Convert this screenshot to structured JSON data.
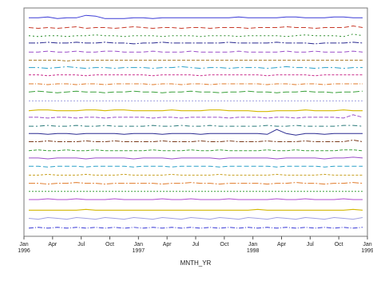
{
  "chart_data": {
    "type": "line",
    "xlabel": "MNTH_YR",
    "ylabel": "",
    "x_ticks": [
      {
        "label": "Jan",
        "sub": "1996",
        "month_index": 0
      },
      {
        "label": "Apr",
        "sub": "",
        "month_index": 3
      },
      {
        "label": "Jul",
        "sub": "",
        "month_index": 6
      },
      {
        "label": "Oct",
        "sub": "",
        "month_index": 9
      },
      {
        "label": "Jan",
        "sub": "1997",
        "month_index": 12
      },
      {
        "label": "Apr",
        "sub": "",
        "month_index": 15
      },
      {
        "label": "Jul",
        "sub": "",
        "month_index": 18
      },
      {
        "label": "Oct",
        "sub": "",
        "month_index": 21
      },
      {
        "label": "Jan",
        "sub": "1998",
        "month_index": 24
      },
      {
        "label": "Apr",
        "sub": "",
        "month_index": 27
      },
      {
        "label": "Jul",
        "sub": "",
        "month_index": 30
      },
      {
        "label": "Oct",
        "sub": "",
        "month_index": 33
      },
      {
        "label": "Jan",
        "sub": "1999",
        "month_index": 36
      }
    ],
    "x_months": [
      "1996-01",
      "1996-02",
      "1996-03",
      "1996-04",
      "1996-05",
      "1996-06",
      "1996-07",
      "1996-08",
      "1996-09",
      "1996-10",
      "1996-11",
      "1996-12",
      "1997-01",
      "1997-02",
      "1997-03",
      "1997-04",
      "1997-05",
      "1997-06",
      "1997-07",
      "1997-08",
      "1997-09",
      "1997-10",
      "1997-11",
      "1997-12",
      "1998-01",
      "1998-02",
      "1998-03",
      "1998-04",
      "1998-05",
      "1998-06",
      "1998-07",
      "1998-08",
      "1998-09",
      "1998-10",
      "1998-11",
      "1998-12"
    ],
    "xlim": [
      0,
      36
    ],
    "ylim": [
      0,
      28
    ],
    "grid": false,
    "legend": "none",
    "series": [
      {
        "color": "#3b3bd6",
        "dash": "solid",
        "values": [
          26.8,
          26.8,
          26.9,
          26.7,
          26.8,
          26.8,
          27.1,
          27.0,
          26.7,
          26.7,
          26.7,
          26.8,
          26.8,
          26.7,
          26.8,
          26.8,
          26.8,
          26.8,
          26.8,
          26.8,
          26.8,
          26.8,
          26.9,
          26.8,
          26.8,
          26.8,
          26.8,
          26.9,
          26.9,
          26.8,
          26.8,
          26.8,
          26.9,
          26.9,
          26.8,
          26.8
        ]
      },
      {
        "color": "#c83a2a",
        "dash": "6,3",
        "values": [
          25.6,
          25.5,
          25.6,
          25.5,
          25.6,
          25.7,
          25.5,
          25.6,
          25.6,
          25.5,
          25.6,
          25.7,
          25.6,
          25.5,
          25.6,
          25.6,
          25.5,
          25.6,
          25.6,
          25.5,
          25.6,
          25.6,
          25.6,
          25.5,
          25.6,
          25.6,
          25.6,
          25.7,
          25.6,
          25.6,
          25.5,
          25.6,
          25.6,
          25.6,
          25.8,
          25.6
        ]
      },
      {
        "color": "#2a8c2a",
        "dash": "2,3",
        "values": [
          24.6,
          24.5,
          24.6,
          24.6,
          24.5,
          24.6,
          24.6,
          24.7,
          24.6,
          24.6,
          24.5,
          24.6,
          24.6,
          24.6,
          24.5,
          24.6,
          24.6,
          24.6,
          24.5,
          24.6,
          24.6,
          24.6,
          24.5,
          24.6,
          24.6,
          24.6,
          24.6,
          24.5,
          24.6,
          24.7,
          24.6,
          24.6,
          24.6,
          24.5,
          24.8,
          24.6
        ]
      },
      {
        "color": "#2a2a90",
        "dash": "8,2,2,2",
        "values": [
          23.7,
          23.7,
          23.8,
          23.7,
          23.7,
          23.8,
          23.7,
          23.7,
          23.8,
          23.7,
          23.7,
          23.6,
          23.7,
          23.7,
          23.8,
          23.7,
          23.7,
          23.7,
          23.7,
          23.7,
          23.7,
          23.8,
          23.7,
          23.7,
          23.7,
          23.7,
          23.8,
          23.7,
          23.7,
          23.7,
          23.6,
          23.7,
          23.7,
          23.7,
          23.8,
          23.7
        ]
      },
      {
        "color": "#9a4ec8",
        "dash": "6,3",
        "values": [
          22.6,
          22.6,
          22.7,
          22.6,
          22.6,
          22.7,
          22.6,
          22.6,
          22.7,
          22.7,
          22.6,
          22.6,
          22.6,
          22.7,
          22.6,
          22.6,
          22.6,
          22.7,
          22.6,
          22.6,
          22.6,
          22.6,
          22.7,
          22.6,
          22.6,
          22.6,
          22.6,
          22.7,
          22.6,
          22.6,
          22.7,
          22.6,
          22.6,
          22.6,
          22.7,
          22.6
        ]
      },
      {
        "color": "#a87a28",
        "dash": "4,2",
        "values": [
          21.6,
          21.6,
          21.6,
          21.6,
          21.5,
          21.6,
          21.6,
          21.6,
          21.6,
          21.6,
          21.6,
          21.6,
          21.6,
          21.6,
          21.6,
          21.6,
          21.6,
          21.6,
          21.6,
          21.6,
          21.6,
          21.6,
          21.6,
          21.6,
          21.6,
          21.6,
          21.6,
          21.6,
          21.6,
          21.6,
          21.6,
          21.6,
          21.6,
          21.6,
          21.6,
          21.6
        ]
      },
      {
        "color": "#2aa0c8",
        "dash": "8,3,2,3",
        "values": [
          20.7,
          20.7,
          20.6,
          20.7,
          20.8,
          20.7,
          20.6,
          20.7,
          20.7,
          20.6,
          20.7,
          20.7,
          20.7,
          20.6,
          20.7,
          20.7,
          20.8,
          20.7,
          20.6,
          20.7,
          20.7,
          20.6,
          20.7,
          20.7,
          20.7,
          20.6,
          20.7,
          20.8,
          20.7,
          20.7,
          20.6,
          20.7,
          20.7,
          20.6,
          20.7,
          20.7
        ]
      },
      {
        "color": "#c82a8a",
        "dash": "3,2",
        "values": [
          19.8,
          19.8,
          19.7,
          19.8,
          19.8,
          19.8,
          19.7,
          19.8,
          19.8,
          19.8,
          19.8,
          19.8,
          19.8,
          19.7,
          19.8,
          19.8,
          19.8,
          19.8,
          19.7,
          19.8,
          19.8,
          19.8,
          19.8,
          19.8,
          19.8,
          19.7,
          19.8,
          19.8,
          19.8,
          19.8,
          19.7,
          19.8,
          19.8,
          19.8,
          19.8,
          19.8
        ]
      },
      {
        "color": "#e07a2a",
        "dash": "6,2,1,2",
        "values": [
          18.7,
          18.7,
          18.6,
          18.7,
          18.7,
          18.6,
          18.7,
          18.7,
          18.6,
          18.7,
          18.7,
          18.7,
          18.7,
          18.6,
          18.7,
          18.7,
          18.6,
          18.7,
          18.7,
          18.6,
          18.7,
          18.7,
          18.7,
          18.7,
          18.7,
          18.6,
          18.7,
          18.7,
          18.6,
          18.7,
          18.7,
          18.6,
          18.7,
          18.7,
          18.7,
          18.7
        ]
      },
      {
        "color": "#3aa03a",
        "dash": "8,3",
        "values": [
          17.7,
          17.8,
          17.7,
          17.6,
          17.7,
          17.8,
          17.7,
          17.7,
          17.6,
          17.7,
          17.7,
          17.8,
          17.7,
          17.7,
          17.6,
          17.7,
          17.7,
          17.8,
          17.7,
          17.7,
          17.6,
          17.7,
          17.7,
          17.8,
          17.7,
          17.7,
          17.6,
          17.7,
          17.7,
          17.8,
          17.7,
          17.7,
          17.6,
          17.7,
          17.7,
          17.8
        ]
      },
      {
        "color": "#a0a0e0",
        "dash": "2,2",
        "values": [
          16.6,
          16.6,
          16.6,
          16.6,
          16.6,
          16.6,
          16.6,
          16.6,
          16.6,
          16.6,
          16.6,
          16.6,
          16.6,
          16.6,
          16.6,
          16.6,
          16.6,
          16.6,
          16.6,
          16.6,
          16.6,
          16.6,
          16.6,
          16.6,
          16.6,
          16.6,
          16.6,
          16.6,
          16.6,
          16.6,
          16.6,
          16.6,
          16.6,
          16.6,
          16.6,
          16.6
        ]
      },
      {
        "color": "#d4b800",
        "dash": "solid",
        "values": [
          15.4,
          15.5,
          15.5,
          15.4,
          15.4,
          15.4,
          15.5,
          15.5,
          15.4,
          15.5,
          15.5,
          15.4,
          15.4,
          15.4,
          15.4,
          15.5,
          15.4,
          15.4,
          15.4,
          15.5,
          15.5,
          15.4,
          15.4,
          15.4,
          15.3,
          15.3,
          15.4,
          15.4,
          15.4,
          15.5,
          15.4,
          15.4,
          15.4,
          15.5,
          15.4,
          15.4
        ]
      },
      {
        "color": "#9a4ec8",
        "dash": "5,2",
        "values": [
          14.6,
          14.6,
          14.5,
          14.6,
          14.6,
          14.5,
          14.6,
          14.6,
          14.5,
          14.6,
          14.6,
          14.6,
          14.6,
          14.5,
          14.6,
          14.6,
          14.5,
          14.6,
          14.6,
          14.6,
          14.6,
          14.5,
          14.6,
          14.6,
          14.6,
          14.5,
          14.6,
          14.6,
          14.5,
          14.6,
          14.6,
          14.6,
          14.6,
          14.5,
          14.9,
          14.6
        ]
      },
      {
        "color": "#2a7a7a",
        "dash": "6,3,2,3",
        "values": [
          13.5,
          13.5,
          13.6,
          13.5,
          13.5,
          13.6,
          13.5,
          13.5,
          13.6,
          13.5,
          13.5,
          13.5,
          13.5,
          13.6,
          13.5,
          13.5,
          13.6,
          13.5,
          13.5,
          13.6,
          13.5,
          13.5,
          13.5,
          13.5,
          13.5,
          13.6,
          13.5,
          13.5,
          13.6,
          13.5,
          13.5,
          13.5,
          13.5,
          13.6,
          13.6,
          13.5
        ]
      },
      {
        "color": "#2a2a90",
        "dash": "solid",
        "values": [
          12.6,
          12.6,
          12.5,
          12.6,
          12.6,
          12.5,
          12.6,
          12.6,
          12.6,
          12.6,
          12.5,
          12.6,
          12.6,
          12.6,
          12.5,
          12.6,
          12.6,
          12.6,
          12.5,
          12.6,
          12.6,
          12.6,
          12.6,
          12.6,
          12.6,
          12.5,
          13.1,
          12.6,
          12.4,
          12.6,
          12.6,
          12.5,
          12.6,
          12.6,
          12.6,
          12.6
        ]
      },
      {
        "color": "#7a3a1a",
        "dash": "6,2,2,2",
        "values": [
          11.6,
          11.6,
          11.7,
          11.6,
          11.6,
          11.6,
          11.7,
          11.6,
          11.6,
          11.7,
          11.6,
          11.6,
          11.6,
          11.6,
          11.7,
          11.6,
          11.6,
          11.6,
          11.7,
          11.6,
          11.6,
          11.7,
          11.6,
          11.6,
          11.6,
          11.7,
          11.6,
          11.6,
          11.6,
          11.7,
          11.6,
          11.6,
          11.6,
          11.6,
          11.8,
          11.6
        ]
      },
      {
        "color": "#3aa03a",
        "dash": "4,2",
        "values": [
          10.5,
          10.6,
          10.5,
          10.5,
          10.6,
          10.5,
          10.5,
          10.6,
          10.5,
          10.5,
          10.5,
          10.5,
          10.5,
          10.6,
          10.5,
          10.5,
          10.5,
          10.6,
          10.5,
          10.5,
          10.6,
          10.5,
          10.5,
          10.5,
          10.5,
          10.6,
          10.5,
          10.5,
          10.6,
          10.5,
          10.5,
          10.5,
          10.5,
          10.6,
          10.6,
          10.5
        ]
      },
      {
        "color": "#9a4ec8",
        "dash": "solid",
        "values": [
          9.6,
          9.6,
          9.5,
          9.6,
          9.6,
          9.6,
          9.5,
          9.6,
          9.6,
          9.6,
          9.6,
          9.5,
          9.6,
          9.6,
          9.6,
          9.5,
          9.6,
          9.6,
          9.6,
          9.6,
          9.5,
          9.6,
          9.6,
          9.6,
          9.6,
          9.6,
          9.5,
          9.6,
          9.6,
          9.6,
          9.6,
          9.5,
          9.6,
          9.6,
          9.7,
          9.6
        ]
      },
      {
        "color": "#2aa0c8",
        "dash": "6,3",
        "values": [
          8.6,
          8.6,
          8.5,
          8.6,
          8.6,
          8.6,
          8.5,
          8.6,
          8.6,
          8.6,
          8.6,
          8.5,
          8.6,
          8.6,
          8.6,
          8.5,
          8.6,
          8.6,
          8.6,
          8.6,
          8.5,
          8.6,
          8.6,
          8.6,
          8.6,
          8.6,
          8.5,
          8.6,
          8.6,
          8.6,
          8.6,
          8.5,
          8.6,
          8.6,
          8.6,
          8.6
        ]
      },
      {
        "color": "#c8a020",
        "dash": "3,2",
        "values": [
          7.5,
          7.5,
          7.6,
          7.5,
          7.5,
          7.5,
          7.6,
          7.5,
          7.5,
          7.5,
          7.6,
          7.5,
          7.5,
          7.5,
          7.5,
          7.6,
          7.5,
          7.5,
          7.5,
          7.5,
          7.6,
          7.5,
          7.5,
          7.5,
          7.5,
          7.5,
          7.6,
          7.5,
          7.5,
          7.5,
          7.5,
          7.6,
          7.5,
          7.5,
          7.5,
          7.5
        ]
      },
      {
        "color": "#e07a2a",
        "dash": "8,2,2,2",
        "values": [
          6.5,
          6.5,
          6.4,
          6.5,
          6.5,
          6.6,
          6.5,
          6.5,
          6.4,
          6.5,
          6.5,
          6.5,
          6.5,
          6.5,
          6.4,
          6.5,
          6.5,
          6.6,
          6.5,
          6.5,
          6.4,
          6.5,
          6.5,
          6.5,
          6.5,
          6.4,
          6.5,
          6.5,
          6.6,
          6.5,
          6.5,
          6.4,
          6.5,
          6.5,
          6.6,
          6.5
        ]
      },
      {
        "color": "#3aa03a",
        "dash": "2,2",
        "values": [
          5.5,
          5.5,
          5.5,
          5.5,
          5.5,
          5.5,
          5.5,
          5.5,
          5.5,
          5.5,
          5.5,
          5.5,
          5.5,
          5.5,
          5.5,
          5.5,
          5.5,
          5.5,
          5.5,
          5.5,
          5.5,
          5.5,
          5.5,
          5.5,
          5.5,
          5.5,
          5.5,
          5.5,
          5.5,
          5.5,
          5.5,
          5.5,
          5.5,
          5.5,
          5.5,
          5.5
        ]
      },
      {
        "color": "#b04ed0",
        "dash": "solid",
        "values": [
          4.5,
          4.5,
          4.6,
          4.5,
          4.5,
          4.6,
          4.5,
          4.5,
          4.5,
          4.6,
          4.5,
          4.5,
          4.5,
          4.5,
          4.6,
          4.5,
          4.5,
          4.6,
          4.5,
          4.5,
          4.5,
          4.6,
          4.5,
          4.5,
          4.5,
          4.5,
          4.6,
          4.5,
          4.5,
          4.6,
          4.5,
          4.5,
          4.5,
          4.6,
          4.5,
          4.5
        ]
      },
      {
        "color": "#d4b800",
        "dash": "solid",
        "values": [
          3.2,
          3.2,
          3.2,
          3.2,
          3.2,
          3.2,
          3.3,
          3.2,
          3.2,
          3.2,
          3.2,
          3.2,
          3.2,
          3.2,
          3.2,
          3.2,
          3.2,
          3.2,
          3.2,
          3.2,
          3.2,
          3.2,
          3.2,
          3.2,
          3.3,
          3.2,
          3.2,
          3.2,
          3.2,
          3.2,
          3.2,
          3.2,
          3.2,
          3.2,
          3.3,
          3.2
        ]
      },
      {
        "color": "#a0a0e0",
        "dash": "solid",
        "values": [
          2.2,
          2.1,
          2.3,
          2.2,
          2.1,
          2.3,
          2.2,
          2.1,
          2.3,
          2.2,
          2.1,
          2.3,
          2.2,
          2.1,
          2.3,
          2.2,
          2.1,
          2.3,
          2.2,
          2.1,
          2.3,
          2.2,
          2.1,
          2.3,
          2.2,
          2.1,
          2.3,
          2.2,
          2.1,
          2.3,
          2.2,
          2.1,
          2.3,
          2.2,
          2.1,
          2.3
        ]
      },
      {
        "color": "#3b3bd6",
        "dash": "6,2,1,2",
        "values": [
          1.0,
          1.1,
          1.0,
          1.1,
          1.0,
          1.1,
          1.0,
          1.1,
          1.0,
          1.1,
          1.0,
          1.1,
          1.0,
          1.1,
          1.0,
          1.1,
          1.0,
          1.1,
          1.0,
          1.1,
          1.0,
          1.1,
          1.0,
          1.1,
          1.0,
          1.1,
          1.0,
          1.1,
          1.0,
          1.1,
          1.0,
          1.1,
          1.0,
          1.1,
          1.0,
          1.1
        ]
      }
    ]
  }
}
